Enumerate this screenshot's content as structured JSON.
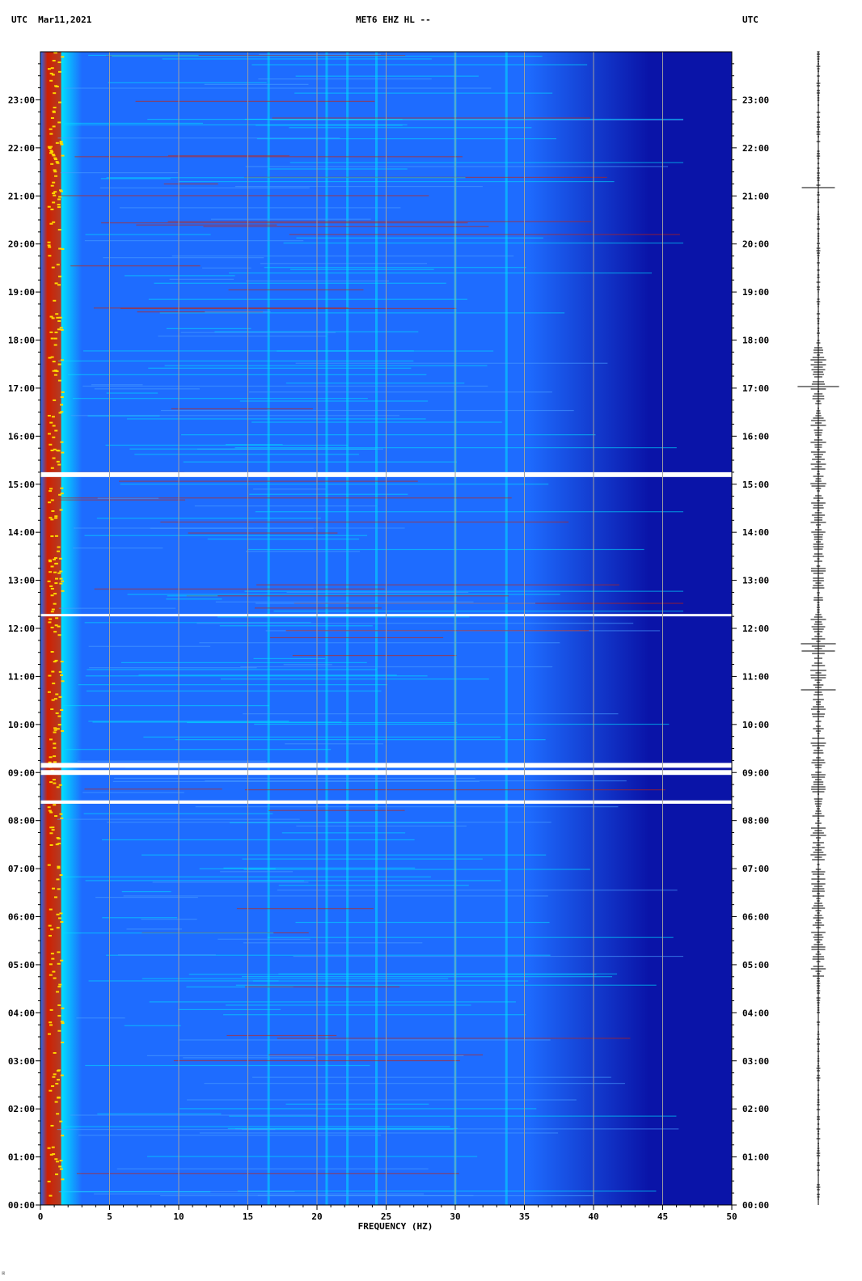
{
  "header": {
    "timezone_left": "UTC",
    "date": "Mar11,2021",
    "station": "MET6 EHZ HL --",
    "timezone_right": "UTC"
  },
  "colors": {
    "background": "#ffffff",
    "spectrum_low": "#0a14a8",
    "spectrum_mid": "#1e6cff",
    "spectrum_high": "#00e0ff",
    "spectrum_peak": "#d02000",
    "gridline": "#a0a0a0",
    "gap": "#ffffff",
    "trace": "#000000"
  },
  "chart_data": {
    "type": "heatmap",
    "xlabel": "FREQUENCY (HZ)",
    "xlim": [
      0,
      50
    ],
    "x_ticks": [
      {
        "value": 0,
        "label": "0"
      },
      {
        "value": 5,
        "label": "5"
      },
      {
        "value": 10,
        "label": "10"
      },
      {
        "value": 15,
        "label": "15"
      },
      {
        "value": 20,
        "label": "20"
      },
      {
        "value": 25,
        "label": "25"
      },
      {
        "value": 30,
        "label": "30"
      },
      {
        "value": 35,
        "label": "35"
      },
      {
        "value": 40,
        "label": "40"
      },
      {
        "value": 45,
        "label": "45"
      },
      {
        "value": 50,
        "label": "50"
      }
    ],
    "ylim_hours": [
      0,
      24
    ],
    "y_ticks": [
      {
        "value": 0,
        "label": "00:00"
      },
      {
        "value": 1,
        "label": "01:00"
      },
      {
        "value": 2,
        "label": "02:00"
      },
      {
        "value": 3,
        "label": "03:00"
      },
      {
        "value": 4,
        "label": "04:00"
      },
      {
        "value": 5,
        "label": "05:00"
      },
      {
        "value": 6,
        "label": "06:00"
      },
      {
        "value": 7,
        "label": "07:00"
      },
      {
        "value": 8,
        "label": "08:00"
      },
      {
        "value": 9,
        "label": "09:00"
      },
      {
        "value": 10,
        "label": "10:00"
      },
      {
        "value": 11,
        "label": "11:00"
      },
      {
        "value": 12,
        "label": "12:00"
      },
      {
        "value": 13,
        "label": "13:00"
      },
      {
        "value": 14,
        "label": "14:00"
      },
      {
        "value": 15,
        "label": "15:00"
      },
      {
        "value": 16,
        "label": "16:00"
      },
      {
        "value": 17,
        "label": "17:00"
      },
      {
        "value": 18,
        "label": "18:00"
      },
      {
        "value": 19,
        "label": "19:00"
      },
      {
        "value": 20,
        "label": "20:00"
      },
      {
        "value": 21,
        "label": "21:00"
      },
      {
        "value": 22,
        "label": "22:00"
      },
      {
        "value": 23,
        "label": "23:00"
      }
    ],
    "grid_vertical": true,
    "strong_band_hz": [
      0.5,
      1.5
    ],
    "persistent_lines_hz": [
      16.5,
      20.7,
      22.2,
      24.3,
      30.0,
      33.7
    ],
    "data_gaps_hours": [
      [
        8.35,
        8.42
      ],
      [
        8.95,
        9.05
      ],
      [
        9.1,
        9.2
      ],
      [
        12.25,
        12.3
      ],
      [
        15.15,
        15.25
      ]
    ],
    "upper_energy_limit_hz": 44
  },
  "footer_mark": "☒"
}
